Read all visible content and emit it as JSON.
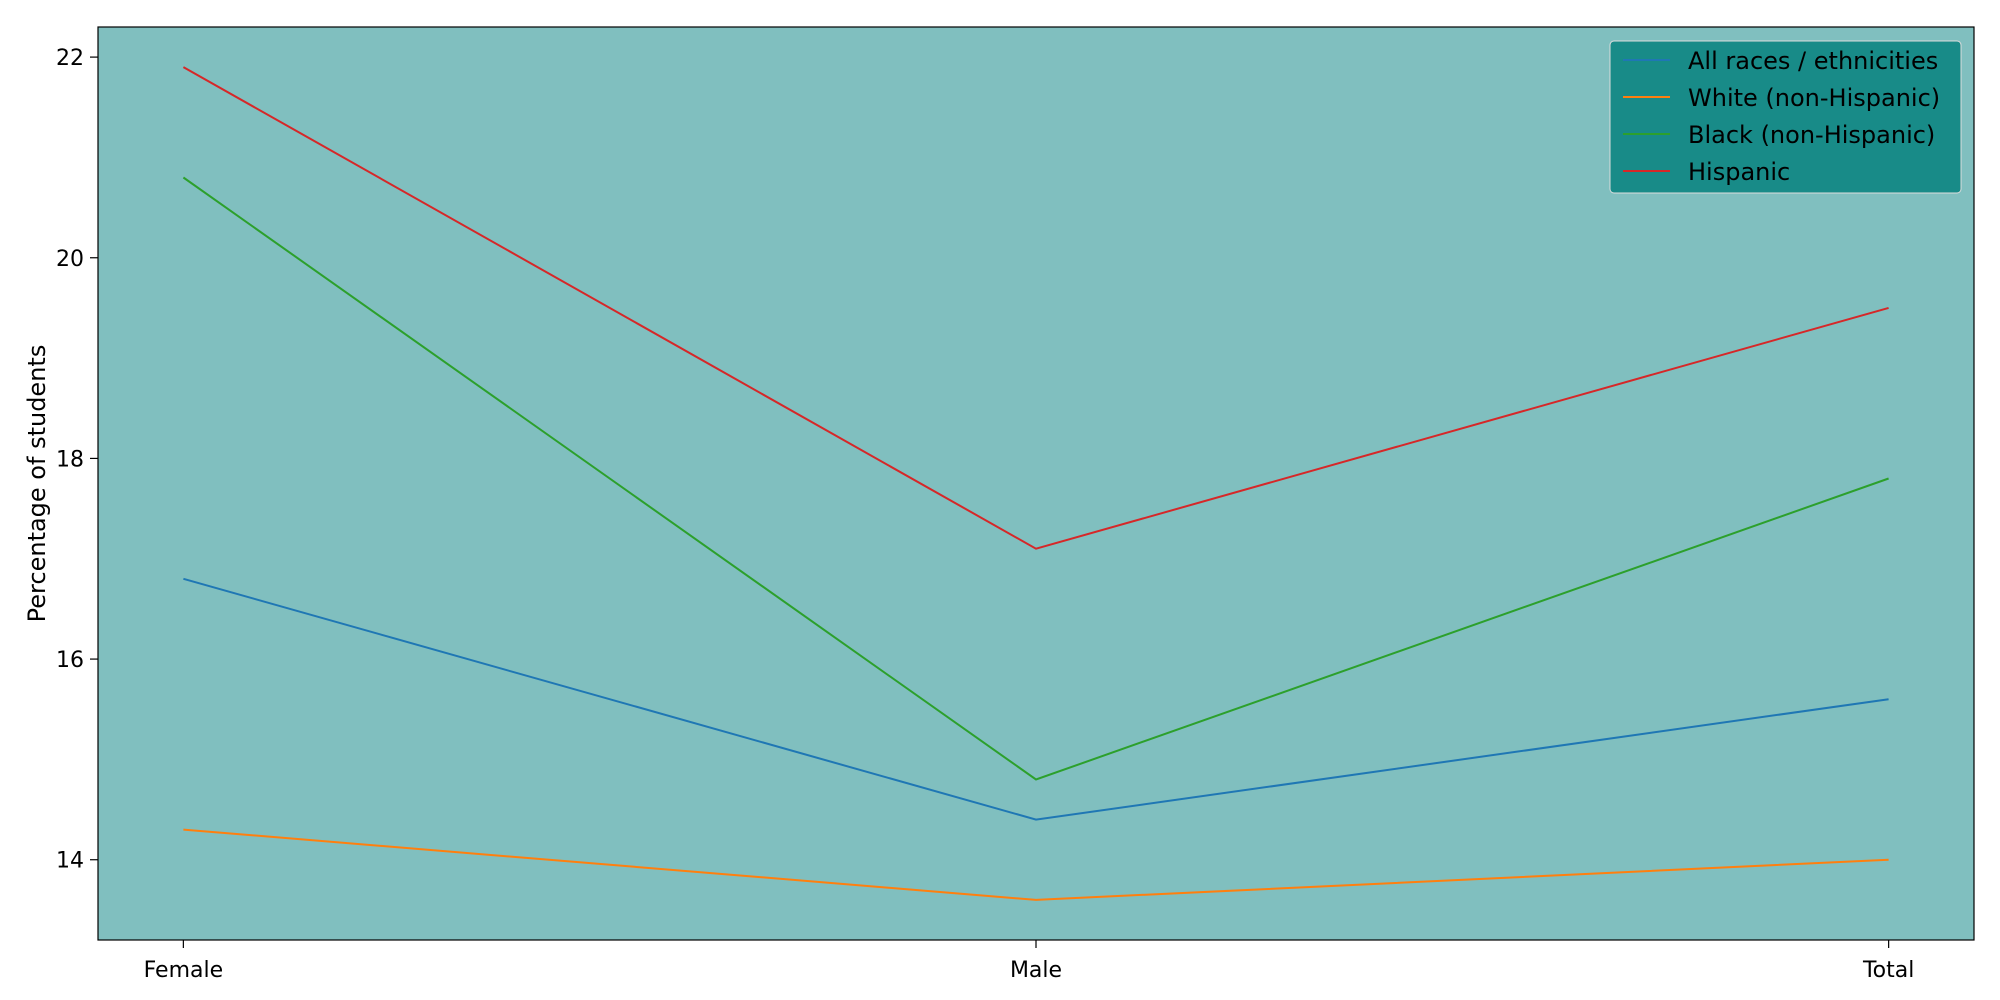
{
  "chart_data": {
    "type": "line",
    "title": "",
    "xlabel": "",
    "ylabel": "Percentage of students",
    "categories": [
      "Female",
      "Male",
      "Total"
    ],
    "ylim": [
      13.2,
      22.3
    ],
    "yticks": [
      14,
      16,
      18,
      20,
      22
    ],
    "grid": false,
    "background_color": "#80bfbf",
    "legend": {
      "placement": "top-right",
      "background_color": "#188b88"
    },
    "series": [
      {
        "name": "All races / ethnicities",
        "color": "#1f77b4",
        "values": [
          16.8,
          14.4,
          15.6
        ]
      },
      {
        "name": "White (non-Hispanic)",
        "color": "#ff7f0e",
        "values": [
          14.3,
          13.6,
          14.0
        ]
      },
      {
        "name": "Black (non-Hispanic)",
        "color": "#2ca02c",
        "values": [
          20.8,
          14.8,
          17.8
        ]
      },
      {
        "name": "Hispanic",
        "color": "#d62728",
        "values": [
          21.9,
          17.1,
          19.5
        ]
      }
    ]
  }
}
